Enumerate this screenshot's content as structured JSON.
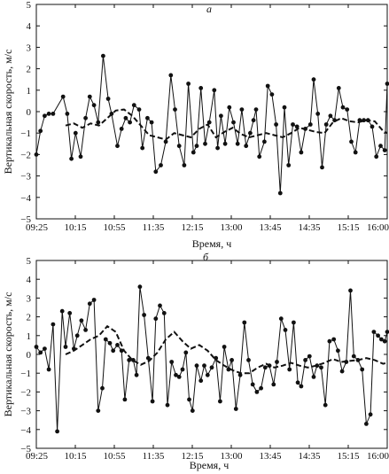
{
  "chart_data": [
    {
      "type": "line",
      "panel_label": "а",
      "ylabel": "Вертикальная скорость, м/с",
      "xlabel": "Время, ч",
      "ylim": [
        -5,
        5
      ],
      "yticks": [
        "5",
        "4",
        "3",
        "2",
        "1",
        "0",
        "−1",
        "−2",
        "−3",
        "−4",
        "−5"
      ],
      "xticks": [
        "09:25",
        "10:15",
        "10:55",
        "11:35",
        "12:15",
        "13:00",
        "13:45",
        "14:35",
        "15:15",
        "16:00"
      ],
      "xlim_minutes": [
        565,
        985
      ],
      "series": [
        {
          "style": "solid-markers",
          "x": [
            565,
            570,
            575,
            580,
            585,
            597,
            602,
            607,
            612,
            618,
            624,
            629,
            634,
            639,
            645,
            651,
            655,
            662,
            667,
            672,
            677,
            682,
            688,
            692,
            698,
            703,
            708,
            714,
            720,
            726,
            731,
            736,
            742,
            747,
            753,
            757,
            762,
            767,
            772,
            778,
            782,
            786,
            791,
            796,
            801,
            806,
            811,
            816,
            821,
            825,
            828,
            832,
            838,
            842,
            847,
            852,
            857,
            862,
            867,
            872,
            877,
            882,
            887,
            893,
            897,
            902,
            907,
            912,
            917,
            922,
            927,
            932,
            937,
            942,
            947,
            952,
            957,
            962,
            967,
            972,
            977,
            982,
            985
          ],
          "y": [
            -2.0,
            -0.9,
            -0.2,
            -0.1,
            -0.1,
            0.7,
            -0.1,
            -2.2,
            -1.0,
            -2.1,
            -0.3,
            0.7,
            0.3,
            -0.5,
            2.6,
            0.6,
            -0.1,
            -1.6,
            -0.8,
            -0.3,
            -0.5,
            0.3,
            0.1,
            -1.7,
            -0.3,
            -0.5,
            -2.8,
            -2.5,
            -1.4,
            1.7,
            0.1,
            -1.6,
            -2.5,
            1.3,
            -1.9,
            -1.6,
            1.1,
            -1.5,
            -0.5,
            1.0,
            -1.7,
            -0.2,
            -1.5,
            0.2,
            -0.5,
            -1.5,
            0.1,
            -1.6,
            -1.0,
            -0.4,
            0.1,
            -2.1,
            -1.4,
            1.2,
            0.8,
            -0.6,
            -3.8,
            0.2,
            -2.5,
            -0.6,
            -0.7,
            -1.9,
            -0.8,
            -0.6,
            1.5,
            -0.1,
            -2.6,
            -0.6,
            -0.2,
            -0.4,
            1.1,
            0.2,
            0.1,
            -1.4,
            -1.9,
            -0.4,
            -0.4,
            -0.4,
            -0.7,
            -2.1,
            -1.6,
            -1.8,
            1.3
          ]
        },
        {
          "style": "dashed",
          "x": [
            600,
            610,
            620,
            630,
            640,
            650,
            660,
            670,
            680,
            690,
            700,
            710,
            720,
            730,
            740,
            750,
            760,
            770,
            780,
            790,
            800,
            810,
            820,
            830,
            840,
            850,
            860,
            870,
            880,
            890,
            900,
            910,
            920,
            930,
            940,
            950,
            960,
            970,
            980,
            985
          ],
          "y": [
            -0.65,
            -0.55,
            -0.75,
            -0.55,
            -0.65,
            -0.3,
            0.05,
            0.1,
            -0.2,
            -0.65,
            -1.1,
            -1.2,
            -1.3,
            -1.0,
            -1.1,
            -1.2,
            -0.8,
            -0.6,
            -1.2,
            -0.95,
            -0.75,
            -1.05,
            -1.2,
            -1.1,
            -1.0,
            -1.1,
            -1.2,
            -1.0,
            -0.75,
            -0.85,
            -0.95,
            -1.0,
            -0.5,
            -0.3,
            -0.45,
            -0.5,
            -0.4,
            -0.45,
            -0.9,
            -1.0
          ]
        }
      ]
    },
    {
      "type": "line",
      "panel_label": "б",
      "ylabel": "Вертикальная скорость, м/с",
      "xlabel": "Время, ч",
      "ylim": [
        -5,
        5
      ],
      "yticks": [
        "5",
        "4",
        "3",
        "2",
        "1",
        "0",
        "−1",
        "−2",
        "−3",
        "−4",
        "−5"
      ],
      "xticks": [
        "09:25",
        "10:15",
        "10:55",
        "11:35",
        "12:15",
        "13:00",
        "13:45",
        "14:35",
        "15:15",
        "16:00"
      ],
      "xlim_minutes": [
        565,
        985
      ],
      "series": [
        {
          "style": "solid-markers",
          "x": [
            565,
            570,
            575,
            580,
            585,
            590,
            596,
            600,
            605,
            610,
            614,
            619,
            624,
            629,
            634,
            639,
            644,
            648,
            653,
            657,
            662,
            667,
            671,
            676,
            681,
            685,
            689,
            694,
            699,
            704,
            708,
            713,
            718,
            722,
            727,
            732,
            736,
            740,
            744,
            748,
            752,
            757,
            762,
            766,
            770,
            775,
            780,
            785,
            790,
            795,
            799,
            804,
            809,
            814,
            819,
            824,
            829,
            834,
            839,
            844,
            849,
            853,
            858,
            863,
            868,
            873,
            878,
            882,
            887,
            892,
            897,
            901,
            906,
            911,
            916,
            921,
            926,
            931,
            936,
            941,
            945,
            950,
            955,
            960,
            965,
            969,
            974,
            978,
            982,
            985
          ],
          "y": [
            0.4,
            0.1,
            0.3,
            -0.8,
            1.6,
            -4.1,
            2.3,
            0.4,
            2.2,
            0.3,
            1.0,
            1.8,
            1.3,
            2.7,
            2.9,
            -3.0,
            -1.8,
            0.8,
            0.6,
            0.2,
            0.5,
            0.2,
            -2.4,
            -0.3,
            -0.3,
            -1.1,
            3.6,
            2.1,
            -0.2,
            -2.5,
            1.9,
            2.6,
            2.2,
            -2.7,
            -0.4,
            -1.1,
            -1.2,
            -0.8,
            0.1,
            -2.4,
            -3.0,
            -0.6,
            -1.4,
            -0.6,
            -1.1,
            -0.7,
            -0.2,
            -2.5,
            0.4,
            -0.8,
            -0.3,
            -2.9,
            -1.1,
            1.7,
            -0.3,
            -1.6,
            -2.0,
            -1.8,
            -0.7,
            -0.6,
            -1.6,
            -0.4,
            1.9,
            1.3,
            -0.8,
            1.7,
            -1.5,
            -1.7,
            -0.3,
            -0.1,
            -1.2,
            -0.6,
            -0.7,
            -2.7,
            0.7,
            0.8,
            0.2,
            -0.9,
            -0.4,
            3.4,
            -0.1,
            -0.3,
            -0.8,
            -3.7,
            -3.2,
            1.2,
            1.0,
            0.8,
            0.7,
            1.2
          ]
        },
        {
          "style": "dashed",
          "x": [
            600,
            610,
            620,
            630,
            640,
            650,
            660,
            670,
            680,
            690,
            700,
            710,
            720,
            730,
            740,
            750,
            760,
            770,
            780,
            790,
            800,
            810,
            820,
            830,
            840,
            850,
            860,
            870,
            880,
            890,
            900,
            910,
            920,
            930,
            940,
            950,
            960,
            970,
            980,
            985
          ],
          "y": [
            0.0,
            0.2,
            0.5,
            0.8,
            1.0,
            1.5,
            1.2,
            0.2,
            -0.3,
            -0.55,
            -0.35,
            0.1,
            0.8,
            1.2,
            0.7,
            0.3,
            0.5,
            0.2,
            -0.3,
            -0.6,
            -0.85,
            -1.0,
            -1.0,
            -0.7,
            -0.5,
            -0.7,
            -0.6,
            -0.45,
            -0.6,
            -0.7,
            -0.6,
            -0.45,
            -0.25,
            -0.4,
            -0.35,
            -0.3,
            -0.2,
            -0.3,
            -0.5,
            -0.45
          ]
        }
      ]
    }
  ]
}
